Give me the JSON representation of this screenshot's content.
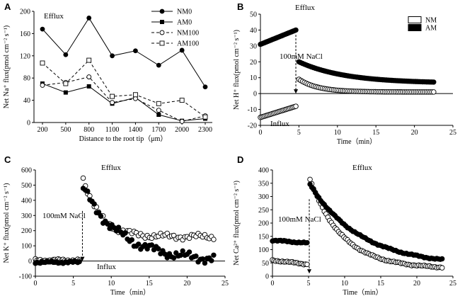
{
  "chart_data": [
    {
      "panel": "A",
      "type": "line",
      "annotation": "Efflux",
      "xlabel": "Distance to the root tip（μm）",
      "ylabel": "Net  Na⁺ flux(pmol cm⁻² s⁻¹)",
      "categories": [
        "200",
        "500",
        "800",
        "1100",
        "1400",
        "1700",
        "2000",
        "2300"
      ],
      "ylim": [
        0,
        200
      ],
      "yticks": [
        "0",
        "40",
        "80",
        "120",
        "160",
        "200"
      ],
      "legend_position": "top-right",
      "series": [
        {
          "name": "NM0",
          "values": [
            168,
            122,
            188,
            120,
            129,
            103,
            130,
            64
          ],
          "style": "solid",
          "marker": "circle-filled"
        },
        {
          "name": "AM0",
          "values": [
            70,
            54,
            65,
            34,
            45,
            14,
            3,
            7
          ],
          "style": "solid",
          "marker": "square-filled"
        },
        {
          "name": "NM100",
          "values": [
            67,
            72,
            82,
            36,
            43,
            22,
            2,
            12
          ],
          "style": "dashed",
          "marker": "circle-open"
        },
        {
          "name": "AM100",
          "values": [
            107,
            70,
            112,
            47,
            50,
            34,
            40,
            10
          ],
          "style": "dashed",
          "marker": "square-open"
        }
      ]
    },
    {
      "panel": "B",
      "type": "scatter",
      "annotation_top": "Efflux",
      "annotation_bottom": "Influx",
      "treatment_label": "100mM NaCl",
      "treatment_time": 4.6,
      "xlabel": "Time（min）",
      "ylabel": "Net  H⁺ flux(pmol cm⁻² s⁻¹)",
      "xlim": [
        0,
        25
      ],
      "ylim": [
        -20,
        50
      ],
      "xticks": [
        "0",
        "5",
        "10",
        "15",
        "20",
        "25"
      ],
      "yticks": [
        "-20",
        "-10",
        "0",
        "10",
        "20",
        "30",
        "40",
        "50"
      ],
      "legend_position": "top-right",
      "series": [
        {
          "name": "NM",
          "marker": "circle-open",
          "segments": [
            {
              "x0": 0,
              "x1": 4.6,
              "n": 25,
              "y0": -15,
              "y1": -8,
              "decay": "linear"
            },
            {
              "x0": 5.0,
              "x1": 22.5,
              "n": 75,
              "y0": 9,
              "yinf": 1,
              "tau": 2.5,
              "decay": "exp"
            }
          ]
        },
        {
          "name": "AM",
          "marker": "circle-filled",
          "segments": [
            {
              "x0": 0,
              "x1": 4.6,
              "n": 25,
              "y0": 31,
              "y1": 40,
              "decay": "linear"
            },
            {
              "x0": 5.0,
              "x1": 22.5,
              "n": 75,
              "y0": 20,
              "yinf": 6.5,
              "tau": 6,
              "decay": "exp"
            }
          ]
        }
      ]
    },
    {
      "panel": "C",
      "type": "scatter",
      "annotation_top": "Efflux",
      "annotation_bottom": "Influx",
      "treatment_label": "100mM NaCl",
      "treatment_time": 6.2,
      "xlabel": "Time（min）",
      "ylabel": "Net  K⁺ flux(pmol cm⁻² s⁻¹)",
      "xlim": [
        0,
        25
      ],
      "ylim": [
        -100,
        600
      ],
      "xticks": [
        "0",
        "5",
        "10",
        "15",
        "20",
        "25"
      ],
      "yticks": [
        "-100",
        "0",
        "100",
        "200",
        "300",
        "400",
        "500",
        "600"
      ],
      "series": [
        {
          "name": "NM",
          "marker": "circle-open",
          "segments": [
            {
              "x0": 0,
              "x1": 5.8,
              "n": 28,
              "y0": 5,
              "y1": 5,
              "decay": "linear",
              "noise": 10
            },
            {
              "x0": 6.3,
              "x1": 23.5,
              "n": 60,
              "y0": 550,
              "yinf": 160,
              "tau": 2.2,
              "decay": "exp",
              "noise": 22
            }
          ]
        },
        {
          "name": "AM",
          "marker": "circle-filled",
          "segments": [
            {
              "x0": 0,
              "x1": 5.8,
              "n": 28,
              "y0": -8,
              "y1": -8,
              "decay": "linear",
              "noise": 8
            },
            {
              "x0": 6.3,
              "x1": 23.5,
              "n": 60,
              "y0": 480,
              "yinf": 0,
              "tau": 5.0,
              "decay": "exp",
              "noise": 35
            }
          ]
        }
      ]
    },
    {
      "panel": "D",
      "type": "scatter",
      "annotation_top": "Efflux",
      "treatment_label": "100mM NaCl",
      "treatment_time": 5.1,
      "xlabel": "Time（min）",
      "ylabel": "Net  Ca²⁺ flux(pmol cm⁻² s⁻¹)",
      "xlim": [
        0,
        25
      ],
      "ylim": [
        0,
        400
      ],
      "xticks": [
        "0",
        "5",
        "10",
        "15",
        "20",
        "25"
      ],
      "yticks": [
        "0",
        "50",
        "100",
        "150",
        "200",
        "250",
        "300",
        "350",
        "400"
      ],
      "series": [
        {
          "name": "NM",
          "marker": "circle-open",
          "segments": [
            {
              "x0": 0,
              "x1": 4.8,
              "n": 22,
              "y0": 60,
              "y1": 45,
              "decay": "linear",
              "noise": 3
            },
            {
              "x0": 5.2,
              "x1": 23.5,
              "n": 75,
              "y0": 365,
              "yinf": 28,
              "tau": 4.5,
              "decay": "exp",
              "noise": 3
            }
          ]
        },
        {
          "name": "AM",
          "marker": "circle-filled",
          "segments": [
            {
              "x0": 0,
              "x1": 4.8,
              "n": 22,
              "y0": 135,
              "y1": 125,
              "decay": "linear",
              "noise": 3
            },
            {
              "x0": 5.2,
              "x1": 23.5,
              "n": 75,
              "y0": 345,
              "yinf": 40,
              "tau": 7.0,
              "decay": "exp",
              "noise": 3
            }
          ]
        }
      ]
    }
  ]
}
